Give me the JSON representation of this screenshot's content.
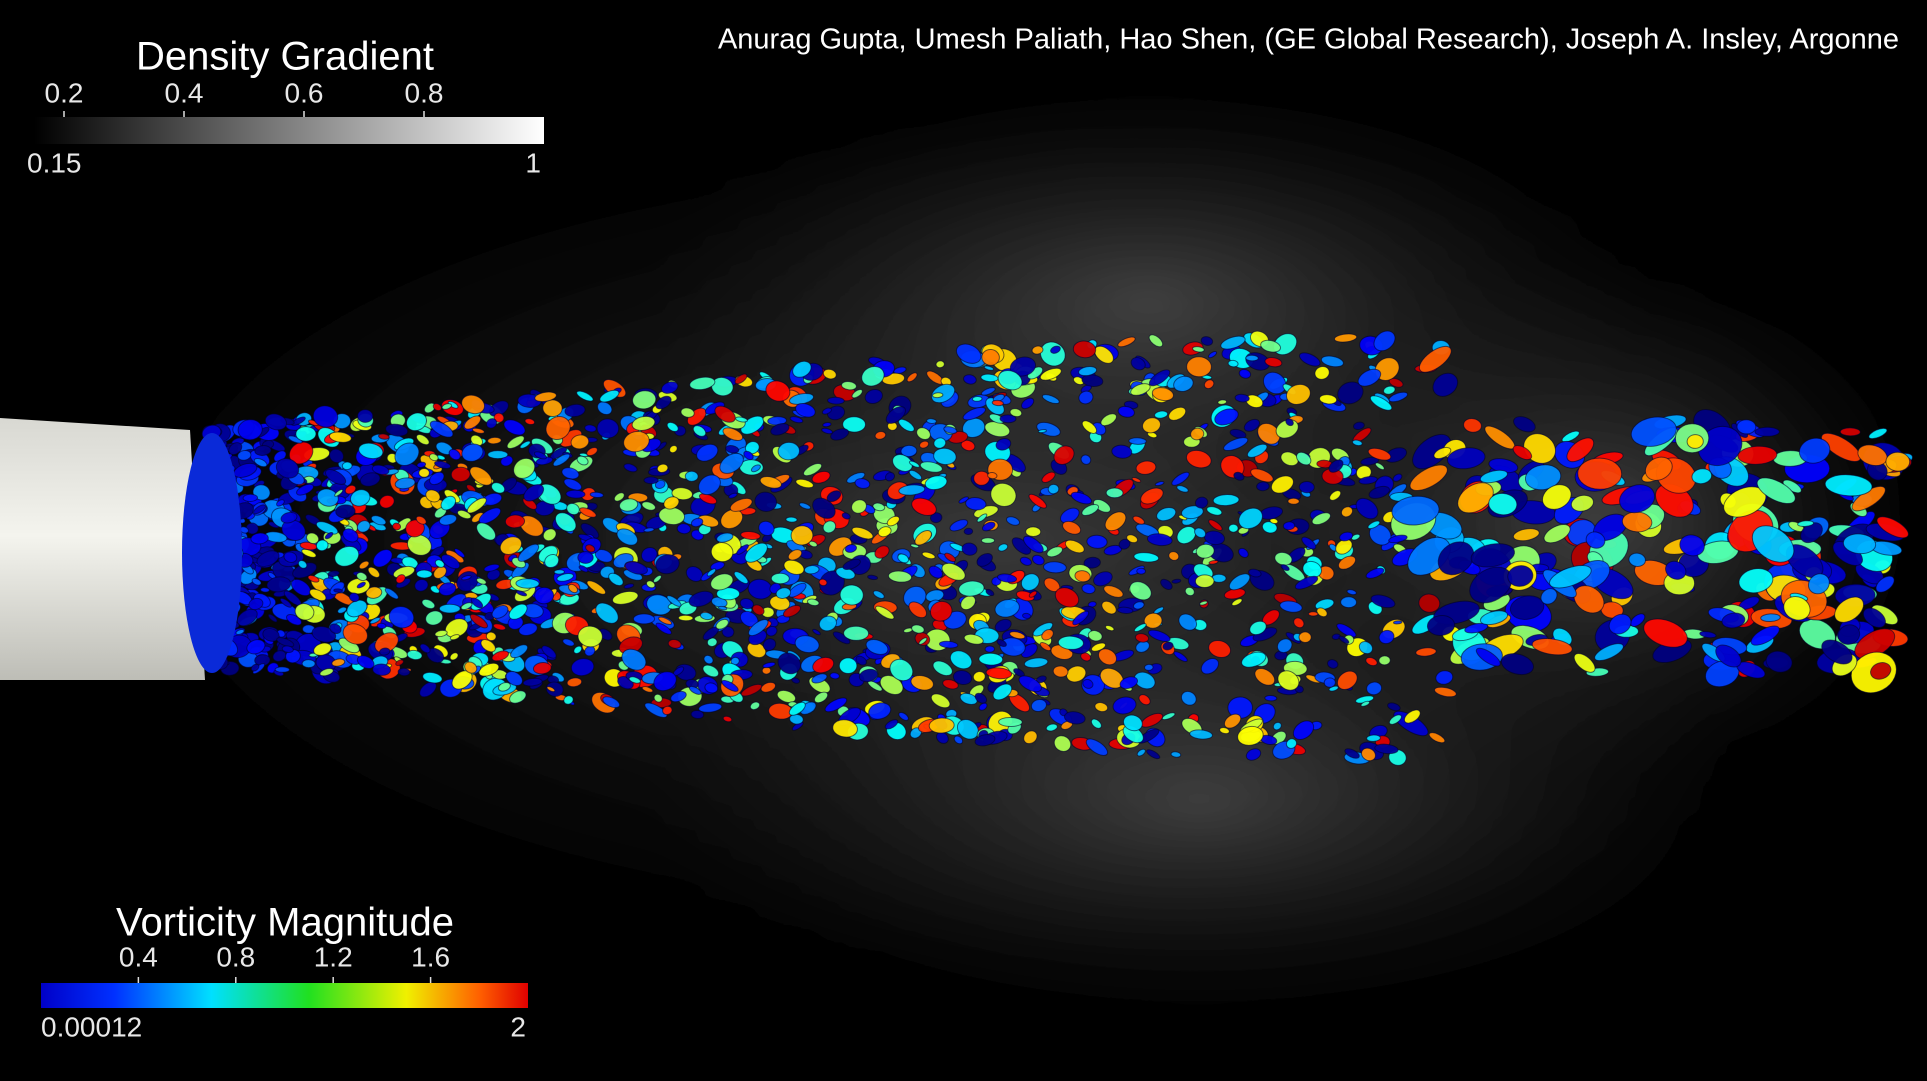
{
  "credit": "Anurag Gupta, Umesh Paliath, Hao Shen, (GE Global Research), Joseph A. Insley, Argonne",
  "density_gradient": {
    "title": "Density Gradient",
    "min": 0.15,
    "max": 1,
    "ticks": [
      0.2,
      0.4,
      0.6,
      0.8
    ]
  },
  "vorticity_magnitude": {
    "title": "Vorticity Magnitude",
    "min": 0.00012,
    "max": 2,
    "ticks": [
      0.4,
      0.8,
      1.2,
      1.6
    ]
  }
}
